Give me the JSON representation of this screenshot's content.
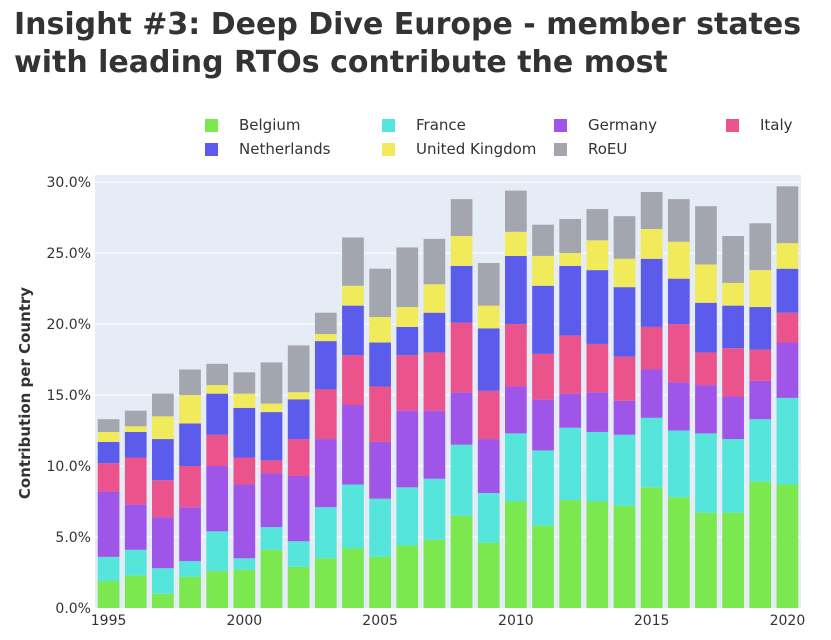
{
  "title": "Insight #3: Deep Dive Europe - member states with leading RTOs contribute the most",
  "legend": [
    {
      "name": "Belgium",
      "color": "#7be84f"
    },
    {
      "name": "France",
      "color": "#56e5db"
    },
    {
      "name": "Germany",
      "color": "#9f55e8"
    },
    {
      "name": "Italy",
      "color": "#ea538b"
    },
    {
      "name": "Netherlands",
      "color": "#5b5cec"
    },
    {
      "name": "United Kingdom",
      "color": "#f1ea5a"
    },
    {
      "name": "RoEU",
      "color": "#a4a6af"
    }
  ],
  "chart_data": {
    "type": "bar",
    "stacked": true,
    "ylabel": "Contribution per Country",
    "ylim": [
      0,
      30.5
    ],
    "yticks": [
      "0.0%",
      "5.0%",
      "10.0%",
      "15.0%",
      "20.0%",
      "25.0%",
      "30.0%"
    ],
    "xticks": [
      "1995",
      "2000",
      "2005",
      "2010",
      "2015",
      "2020"
    ],
    "categories": [
      "1995",
      "1996",
      "1997",
      "1998",
      "1999",
      "2000",
      "2001",
      "2002",
      "2003",
      "2004",
      "2005",
      "2006",
      "2007",
      "2008",
      "2009",
      "2010",
      "2011",
      "2012",
      "2013",
      "2014",
      "2015",
      "2016",
      "2017",
      "2018",
      "2019",
      "2020"
    ],
    "legend_position": "top",
    "grid": true,
    "series": [
      {
        "name": "Belgium",
        "color": "#7be84f",
        "values": [
          1.9,
          2.3,
          1.0,
          2.2,
          2.6,
          2.7,
          4.1,
          2.9,
          3.5,
          4.2,
          3.6,
          4.4,
          4.8,
          6.5,
          4.6,
          7.5,
          5.8,
          7.6,
          7.5,
          7.2,
          8.5,
          7.8,
          6.7,
          6.7,
          8.9,
          8.7
        ]
      },
      {
        "name": "France",
        "color": "#56e5db",
        "values": [
          1.7,
          1.8,
          1.8,
          1.1,
          2.8,
          0.8,
          1.6,
          1.8,
          3.6,
          4.5,
          4.1,
          4.1,
          4.3,
          5.0,
          3.5,
          4.8,
          5.3,
          5.1,
          4.9,
          5.0,
          4.9,
          4.7,
          5.6,
          5.2,
          4.4,
          6.1
        ]
      },
      {
        "name": "Germany",
        "color": "#9f55e8",
        "values": [
          4.6,
          3.2,
          3.6,
          3.8,
          4.6,
          5.2,
          3.8,
          4.6,
          4.8,
          5.6,
          4.0,
          5.4,
          4.8,
          3.7,
          3.8,
          3.3,
          3.6,
          2.4,
          2.8,
          2.4,
          3.4,
          3.4,
          3.4,
          3.0,
          2.7,
          3.9
        ]
      },
      {
        "name": "Italy",
        "color": "#ea538b",
        "values": [
          2.0,
          3.3,
          2.6,
          2.9,
          2.2,
          1.9,
          0.9,
          2.6,
          3.5,
          3.5,
          3.9,
          3.9,
          4.1,
          4.9,
          3.4,
          4.4,
          3.2,
          4.1,
          3.4,
          3.1,
          3.0,
          4.1,
          2.3,
          3.4,
          2.2,
          2.1
        ]
      },
      {
        "name": "Netherlands",
        "color": "#5b5cec",
        "values": [
          1.5,
          1.8,
          2.9,
          3.0,
          2.9,
          3.5,
          3.4,
          2.8,
          3.4,
          3.5,
          3.1,
          2.0,
          2.8,
          4.0,
          4.4,
          4.8,
          4.8,
          4.9,
          5.2,
          4.9,
          4.8,
          3.2,
          3.5,
          3.0,
          3.0,
          3.1
        ]
      },
      {
        "name": "United Kingdom",
        "color": "#f1ea5a",
        "values": [
          0.7,
          0.4,
          1.6,
          2.0,
          0.6,
          1.0,
          0.6,
          0.5,
          0.5,
          1.4,
          1.8,
          1.4,
          2.0,
          2.1,
          1.6,
          1.7,
          2.1,
          0.9,
          2.1,
          2.0,
          2.1,
          2.6,
          2.7,
          1.6,
          2.6,
          1.8
        ]
      },
      {
        "name": "RoEU",
        "color": "#a4a6af",
        "values": [
          0.9,
          1.1,
          1.6,
          1.8,
          1.5,
          1.5,
          2.9,
          3.3,
          1.5,
          3.4,
          3.4,
          4.2,
          3.2,
          2.6,
          3.0,
          2.9,
          2.2,
          2.4,
          2.2,
          3.0,
          2.6,
          3.0,
          4.1,
          3.3,
          3.3,
          4.0
        ]
      }
    ]
  }
}
